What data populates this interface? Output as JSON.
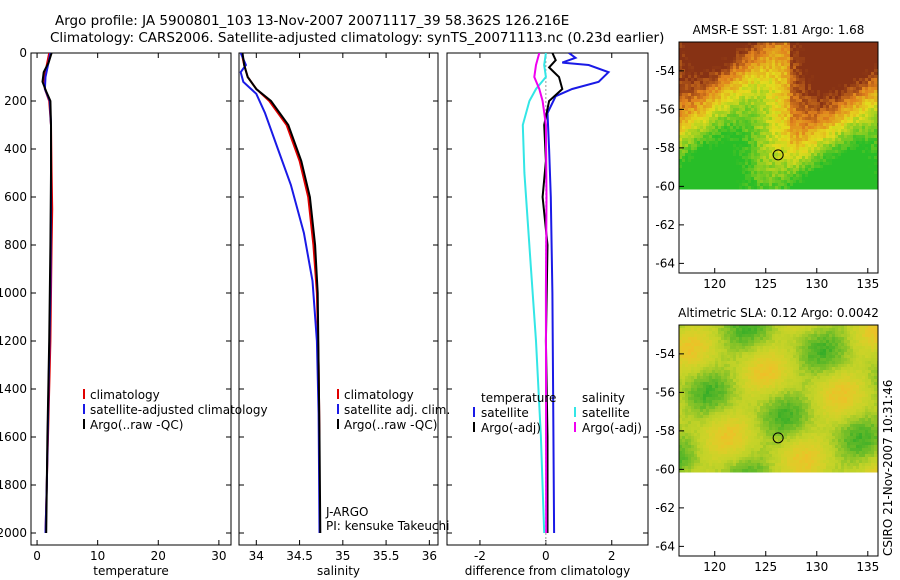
{
  "header": {
    "line1": "Argo profile: JA 5900801_103 13-Nov-2007 20071117_39 58.362S 126.216E",
    "line2": "Climatology: CARS2006. Satellite-adjusted climatology: synTS_20071113.nc (0.23d earlier)"
  },
  "footer": {
    "credit": "CSIRO 21-Nov-2007 10:31:46"
  },
  "colors": {
    "red": "#e00000",
    "blue": "#1a1ae6",
    "black": "#000000",
    "cyan": "#33e6e6",
    "magenta": "#f000f0"
  },
  "chart_data": [
    {
      "type": "line",
      "id": "temperature-panel",
      "xlabel": "temperature",
      "xlim": [
        -1,
        32
      ],
      "ylim": [
        2050,
        0
      ],
      "xticks": [
        "0",
        "10",
        "20",
        "30"
      ],
      "yticks": [
        "0",
        "200",
        "400",
        "600",
        "800",
        "1000",
        "1200",
        "1400",
        "1600",
        "1800",
        "2000"
      ],
      "series": [
        {
          "name": "climatology",
          "color": "red",
          "points": [
            [
              2.0,
              0
            ],
            [
              1.6,
              50
            ],
            [
              1.2,
              100
            ],
            [
              1.3,
              150
            ],
            [
              2.0,
              200
            ],
            [
              2.3,
              300
            ],
            [
              2.4,
              500
            ],
            [
              2.5,
              650
            ],
            [
              2.4,
              800
            ],
            [
              2.2,
              1200
            ],
            [
              1.8,
              1600
            ],
            [
              1.4,
              2000
            ]
          ]
        },
        {
          "name": "satellite-adjusted climatology",
          "color": "blue",
          "points": [
            [
              2.2,
              0
            ],
            [
              1.8,
              50
            ],
            [
              1.4,
              100
            ],
            [
              1.3,
              150
            ],
            [
              2.1,
              200
            ],
            [
              2.3,
              300
            ],
            [
              2.3,
              500
            ],
            [
              2.3,
              700
            ],
            [
              2.2,
              1000
            ],
            [
              1.9,
              1400
            ],
            [
              1.6,
              1800
            ],
            [
              1.4,
              2000
            ]
          ]
        },
        {
          "name": "Argo(..raw -QC)",
          "color": "black",
          "points": [
            [
              2.4,
              0
            ],
            [
              1.9,
              40
            ],
            [
              1.1,
              80
            ],
            [
              0.9,
              120
            ],
            [
              1.5,
              160
            ],
            [
              2.2,
              200
            ],
            [
              2.3,
              300
            ],
            [
              2.3,
              500
            ],
            [
              2.2,
              800
            ],
            [
              2.0,
              1200
            ],
            [
              1.7,
              1600
            ],
            [
              1.5,
              2000
            ]
          ]
        }
      ],
      "legend": [
        "climatology",
        "satellite-adjusted climatology",
        "Argo(..raw -QC)"
      ]
    },
    {
      "type": "line",
      "id": "salinity-panel",
      "xlabel": "salinity",
      "xlim": [
        33.8,
        36.1
      ],
      "ylim": [
        2050,
        0
      ],
      "xticks": [
        "34",
        "34.5",
        "35",
        "35.5",
        "36"
      ],
      "yticks": [],
      "series": [
        {
          "name": "climatology",
          "color": "red",
          "points": [
            [
              33.83,
              0
            ],
            [
              33.86,
              50
            ],
            [
              33.9,
              100
            ],
            [
              34.0,
              150
            ],
            [
              34.15,
              200
            ],
            [
              34.35,
              300
            ],
            [
              34.5,
              450
            ],
            [
              34.6,
              600
            ],
            [
              34.66,
              800
            ],
            [
              34.7,
              1000
            ],
            [
              34.72,
              1300
            ],
            [
              34.73,
              1600
            ],
            [
              34.73,
              2000
            ]
          ]
        },
        {
          "name": "satellite adj. clim.",
          "color": "blue",
          "points": [
            [
              33.82,
              0
            ],
            [
              33.88,
              50
            ],
            [
              33.82,
              80
            ],
            [
              33.85,
              120
            ],
            [
              34.0,
              170
            ],
            [
              34.1,
              250
            ],
            [
              34.25,
              400
            ],
            [
              34.4,
              550
            ],
            [
              34.55,
              750
            ],
            [
              34.65,
              950
            ],
            [
              34.7,
              1200
            ],
            [
              34.72,
              1500
            ],
            [
              34.73,
              2000
            ]
          ]
        },
        {
          "name": "Argo(..raw -QC)",
          "color": "black",
          "points": [
            [
              33.84,
              0
            ],
            [
              33.86,
              50
            ],
            [
              33.9,
              100
            ],
            [
              34.0,
              150
            ],
            [
              34.17,
              200
            ],
            [
              34.37,
              300
            ],
            [
              34.52,
              450
            ],
            [
              34.62,
              600
            ],
            [
              34.68,
              800
            ],
            [
              34.71,
              1000
            ],
            [
              34.72,
              1300
            ],
            [
              34.73,
              1600
            ],
            [
              34.74,
              2000
            ]
          ]
        }
      ],
      "legend": [
        "climatology",
        "satellite adj. clim.",
        "Argo(..raw -QC)"
      ],
      "annotation": [
        "J-ARGO",
        "PI: kensuke Takeuchi"
      ]
    },
    {
      "type": "line",
      "id": "difference-panel",
      "xlabel": "difference from climatology",
      "xlim": [
        -3,
        3.1
      ],
      "ylim": [
        2050,
        0
      ],
      "xticks": [
        "-2",
        "0",
        "2"
      ],
      "yticks": [],
      "series": [
        {
          "name": "temperature satellite",
          "color": "blue",
          "points": [
            [
              0.7,
              0
            ],
            [
              0.9,
              20
            ],
            [
              0.5,
              40
            ],
            [
              1.3,
              50
            ],
            [
              1.9,
              80
            ],
            [
              1.6,
              120
            ],
            [
              0.8,
              150
            ],
            [
              0.3,
              180
            ],
            [
              0.05,
              250
            ],
            [
              0.1,
              400
            ],
            [
              0.15,
              600
            ],
            [
              0.2,
              1000
            ],
            [
              0.22,
              1400
            ],
            [
              0.25,
              2000
            ]
          ]
        },
        {
          "name": "temperature Argo(-adj)",
          "color": "black",
          "points": [
            [
              0.2,
              0
            ],
            [
              0.3,
              30
            ],
            [
              0.1,
              60
            ],
            [
              0.4,
              100
            ],
            [
              0.5,
              150
            ],
            [
              0.1,
              200
            ],
            [
              -0.05,
              300
            ],
            [
              0.0,
              450
            ],
            [
              -0.1,
              600
            ],
            [
              0.05,
              800
            ],
            [
              0.0,
              1200
            ],
            [
              0.05,
              1600
            ],
            [
              0.05,
              2000
            ]
          ]
        },
        {
          "name": "salinity satellite",
          "color": "cyan",
          "points": [
            [
              0.0,
              0
            ],
            [
              -0.05,
              50
            ],
            [
              0.0,
              100
            ],
            [
              -0.3,
              150
            ],
            [
              -0.5,
              200
            ],
            [
              -0.7,
              300
            ],
            [
              -0.65,
              500
            ],
            [
              -0.55,
              700
            ],
            [
              -0.45,
              900
            ],
            [
              -0.3,
              1200
            ],
            [
              -0.15,
              1600
            ],
            [
              -0.05,
              2000
            ]
          ]
        },
        {
          "name": "salinity Argo(-adj)",
          "color": "magenta",
          "points": [
            [
              -0.2,
              0
            ],
            [
              -0.3,
              50
            ],
            [
              -0.35,
              100
            ],
            [
              -0.2,
              150
            ],
            [
              -0.1,
              200
            ],
            [
              0.0,
              300
            ],
            [
              0.02,
              600
            ],
            [
              0.0,
              1000
            ],
            [
              0.01,
              2000
            ]
          ]
        }
      ],
      "legend_headers": [
        "temperature",
        "salinity"
      ],
      "legend": [
        "satellite",
        "Argo(-adj)",
        "satellite",
        "Argo(-adj)"
      ]
    },
    {
      "type": "heatmap",
      "id": "sst-map",
      "title": "AMSR-E SST: 1.81 Argo: 1.68",
      "xlim": [
        116.5,
        136
      ],
      "ylim": [
        -64.5,
        -52.5
      ],
      "xticks": [
        "120",
        "125",
        "130",
        "135"
      ],
      "yticks": [
        "-54",
        "-56",
        "-58",
        "-60",
        "-62",
        "-64"
      ],
      "data_lat_range": [
        -60.1,
        -52.5
      ],
      "float_position": [
        126.216,
        -58.362
      ]
    },
    {
      "type": "heatmap",
      "id": "sla-map",
      "title": "Altimetric SLA: 0.12 Argo: 0.0042",
      "xlim": [
        116.5,
        136
      ],
      "ylim": [
        -64.5,
        -52.5
      ],
      "xticks": [
        "120",
        "125",
        "130",
        "135"
      ],
      "yticks": [
        "-54",
        "-56",
        "-58",
        "-60",
        "-62",
        "-64"
      ],
      "data_lat_range": [
        -60.1,
        -52.5
      ],
      "float_position": [
        126.216,
        -58.362
      ]
    }
  ]
}
